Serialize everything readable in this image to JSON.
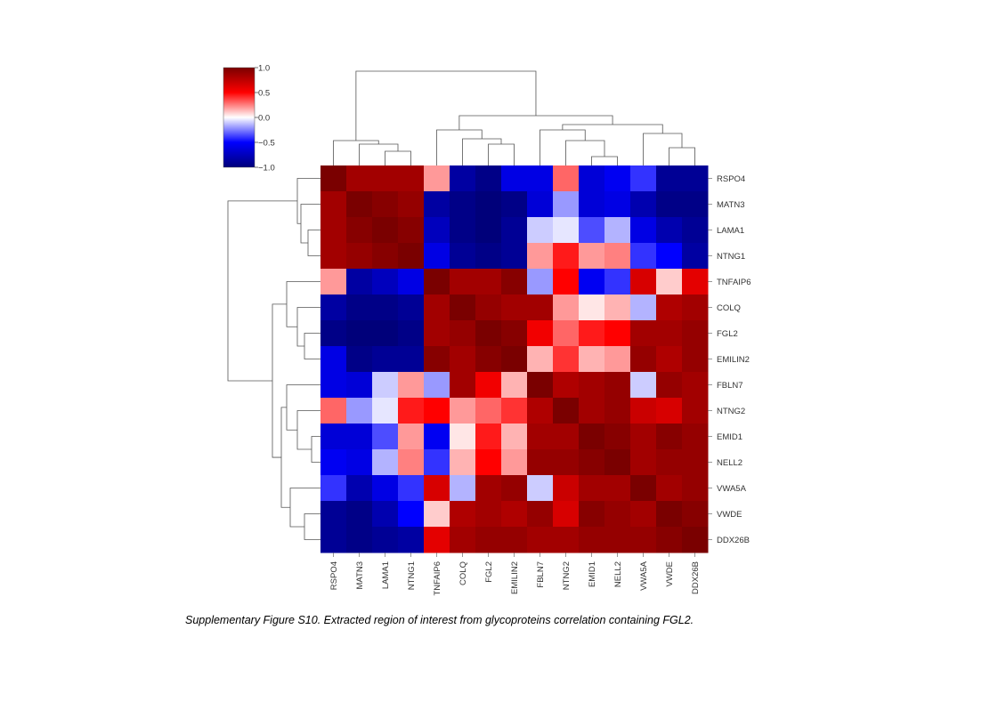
{
  "caption": "Supplementary Figure S10. Extracted region of interest from glycoproteins correlation containing FGL2.",
  "chart_data": {
    "type": "heatmap",
    "title": "",
    "xlabel": "",
    "ylabel": "",
    "rows": [
      "RSPO4",
      "MATN3",
      "LAMA1",
      "NTNG1",
      "TNFAIP6",
      "COLQ",
      "FGL2",
      "EMILIN2",
      "FBLN7",
      "NTNG2",
      "EMID1",
      "NELL2",
      "VWA5A",
      "VWDE",
      "DDX26B"
    ],
    "columns": [
      "RSPO4",
      "MATN3",
      "LAMA1",
      "NTNG1",
      "TNFAIP6",
      "COLQ",
      "FGL2",
      "EMILIN2",
      "FBLN7",
      "NTNG2",
      "EMID1",
      "NELL2",
      "VWA5A",
      "VWDE",
      "DDX26B"
    ],
    "values": [
      [
        1.0,
        0.85,
        0.85,
        0.85,
        0.2,
        -0.85,
        -0.95,
        -0.6,
        -0.6,
        0.3,
        -0.65,
        -0.55,
        -0.4,
        -0.9,
        -0.9
      ],
      [
        0.85,
        1.0,
        0.95,
        0.9,
        -0.85,
        -0.95,
        -1.0,
        -0.95,
        -0.65,
        -0.2,
        -0.65,
        -0.6,
        -0.8,
        -0.95,
        -0.95
      ],
      [
        0.85,
        0.95,
        1.0,
        0.95,
        -0.75,
        -0.95,
        -1.0,
        -0.9,
        -0.1,
        -0.05,
        -0.35,
        -0.15,
        -0.6,
        -0.8,
        -0.9
      ],
      [
        0.85,
        0.9,
        0.95,
        1.0,
        -0.6,
        -0.9,
        -0.95,
        -0.9,
        0.2,
        0.45,
        0.2,
        0.25,
        -0.4,
        -0.5,
        -0.85
      ],
      [
        0.2,
        -0.85,
        -0.75,
        -0.6,
        1.0,
        0.85,
        0.85,
        0.95,
        -0.2,
        0.5,
        -0.55,
        -0.4,
        0.65,
        0.1,
        0.6
      ],
      [
        -0.85,
        -0.95,
        -0.95,
        -0.9,
        0.85,
        1.0,
        0.9,
        0.85,
        0.85,
        0.2,
        0.05,
        0.15,
        -0.15,
        0.8,
        0.85
      ],
      [
        -0.95,
        -1.0,
        -1.0,
        -0.95,
        0.85,
        0.9,
        1.0,
        0.95,
        0.55,
        0.3,
        0.45,
        0.5,
        0.85,
        0.85,
        0.9
      ],
      [
        -0.6,
        -0.95,
        -0.9,
        -0.9,
        0.95,
        0.85,
        0.95,
        1.0,
        0.15,
        0.4,
        0.15,
        0.2,
        0.9,
        0.8,
        0.9
      ],
      [
        -0.6,
        -0.65,
        -0.1,
        0.2,
        -0.2,
        0.85,
        0.55,
        0.15,
        1.0,
        0.8,
        0.85,
        0.9,
        -0.1,
        0.9,
        0.85
      ],
      [
        0.3,
        -0.2,
        -0.05,
        0.45,
        0.5,
        0.2,
        0.3,
        0.4,
        0.8,
        1.0,
        0.85,
        0.9,
        0.7,
        0.65,
        0.85
      ],
      [
        -0.65,
        -0.65,
        -0.35,
        0.2,
        -0.55,
        0.05,
        0.45,
        0.15,
        0.85,
        0.85,
        1.0,
        0.95,
        0.85,
        0.95,
        0.9
      ],
      [
        -0.55,
        -0.6,
        -0.15,
        0.25,
        -0.4,
        0.15,
        0.5,
        0.2,
        0.9,
        0.9,
        0.95,
        1.0,
        0.85,
        0.9,
        0.9
      ],
      [
        -0.4,
        -0.8,
        -0.6,
        -0.4,
        0.65,
        -0.15,
        0.85,
        0.9,
        -0.1,
        0.7,
        0.85,
        0.85,
        1.0,
        0.85,
        0.9
      ],
      [
        -0.9,
        -0.95,
        -0.8,
        -0.5,
        0.1,
        0.8,
        0.85,
        0.8,
        0.9,
        0.65,
        0.95,
        0.9,
        0.85,
        1.0,
        0.95
      ],
      [
        -0.9,
        -0.95,
        -0.9,
        -0.85,
        0.6,
        0.85,
        0.9,
        0.9,
        0.85,
        0.85,
        0.9,
        0.9,
        0.9,
        0.95,
        1.0
      ]
    ],
    "colorbar": {
      "range": [
        -1.0,
        1.0
      ],
      "ticks": [
        "1.0",
        "0.5",
        "0.0",
        "−0.5",
        "−1.0"
      ],
      "colors": {
        "low": "#00007a",
        "mid_low": "#0000ff",
        "mid": "#ffffff",
        "mid_high": "#ff0000",
        "high": "#7a0000"
      }
    },
    "col_dendrogram_order": [
      0,
      1,
      2,
      3,
      4,
      5,
      6,
      7,
      8,
      9,
      10,
      11,
      12,
      13,
      14
    ],
    "row_dendrogram_order": [
      0,
      1,
      2,
      3,
      4,
      5,
      6,
      7,
      8,
      9,
      10,
      11,
      12,
      13,
      14
    ]
  }
}
